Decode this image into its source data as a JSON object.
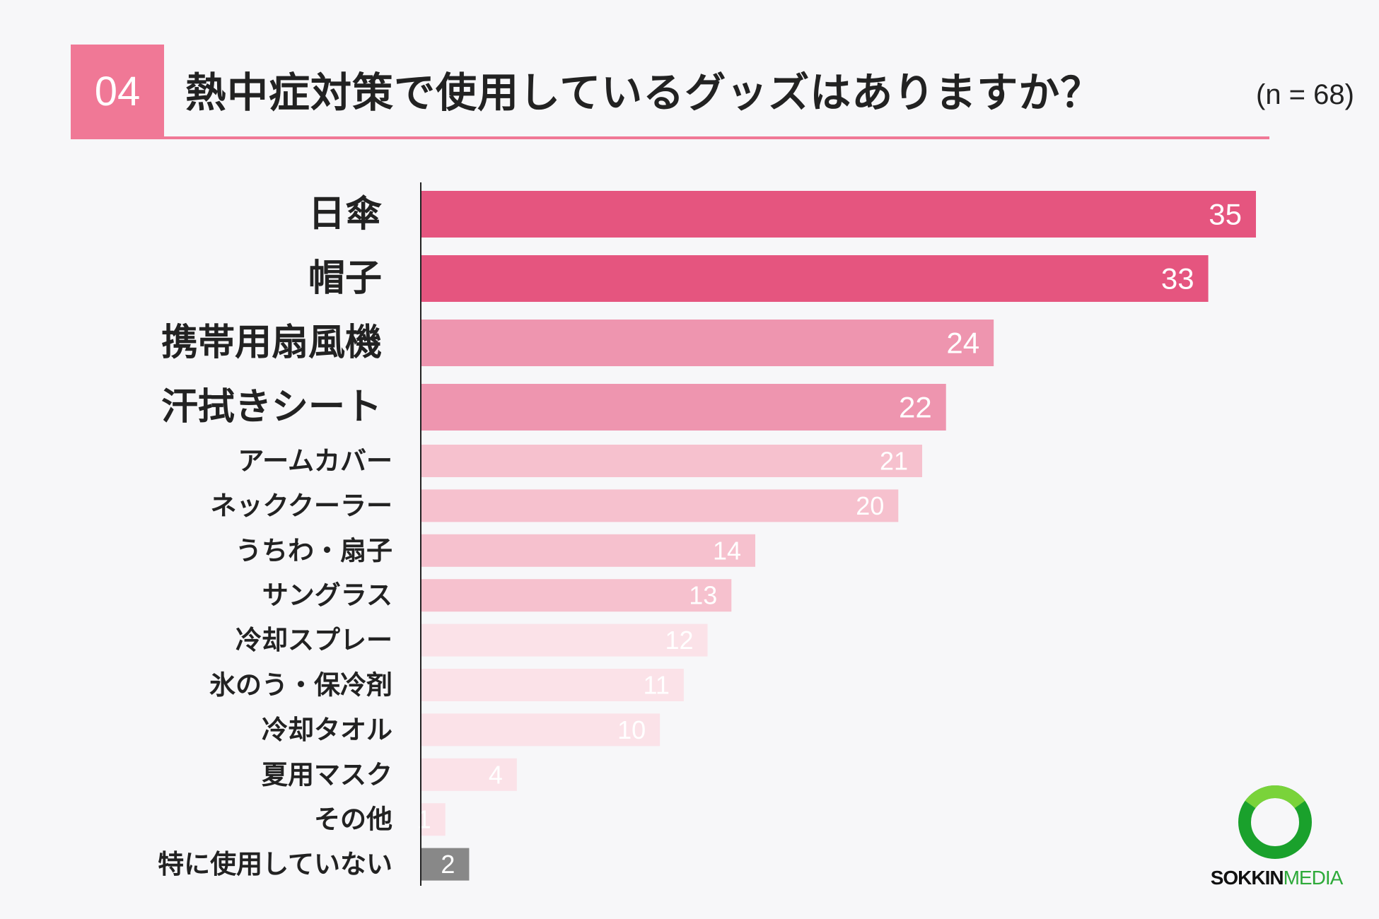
{
  "header": {
    "number": "04",
    "title": "熱中症対策で使用しているグッズはありますか？",
    "sample": "(n = 68)",
    "accent": "#f07896"
  },
  "logo": {
    "part1": "SOKKIN",
    "part2": "MEDIA",
    "icon": "green-ring-icon"
  },
  "chart_data": {
    "type": "bar",
    "orientation": "horizontal",
    "categories": [
      "日傘",
      "帽子",
      "携帯用扇風機",
      "汗拭きシート",
      "アームカバー",
      "ネッククーラー",
      "うちわ・扇子",
      "サングラス",
      "冷却スプレー",
      "氷のう・保冷剤",
      "冷却タオル",
      "夏用マスク",
      "その他",
      "特に使用していない"
    ],
    "values": [
      35,
      33,
      24,
      22,
      21,
      20,
      14,
      13,
      12,
      11,
      10,
      4,
      1,
      2
    ],
    "xlim": [
      0,
      35
    ],
    "grid": false,
    "colors": [
      "#e5557f",
      "#e5557f",
      "#ee95af",
      "#ee95af",
      "#f6c1ce",
      "#f6c1ce",
      "#f6c1ce",
      "#f6c1ce",
      "#fbe2e8",
      "#fbe2e8",
      "#fbe2e8",
      "#fbe2e8",
      "#fbe2e8",
      "#888888"
    ]
  }
}
